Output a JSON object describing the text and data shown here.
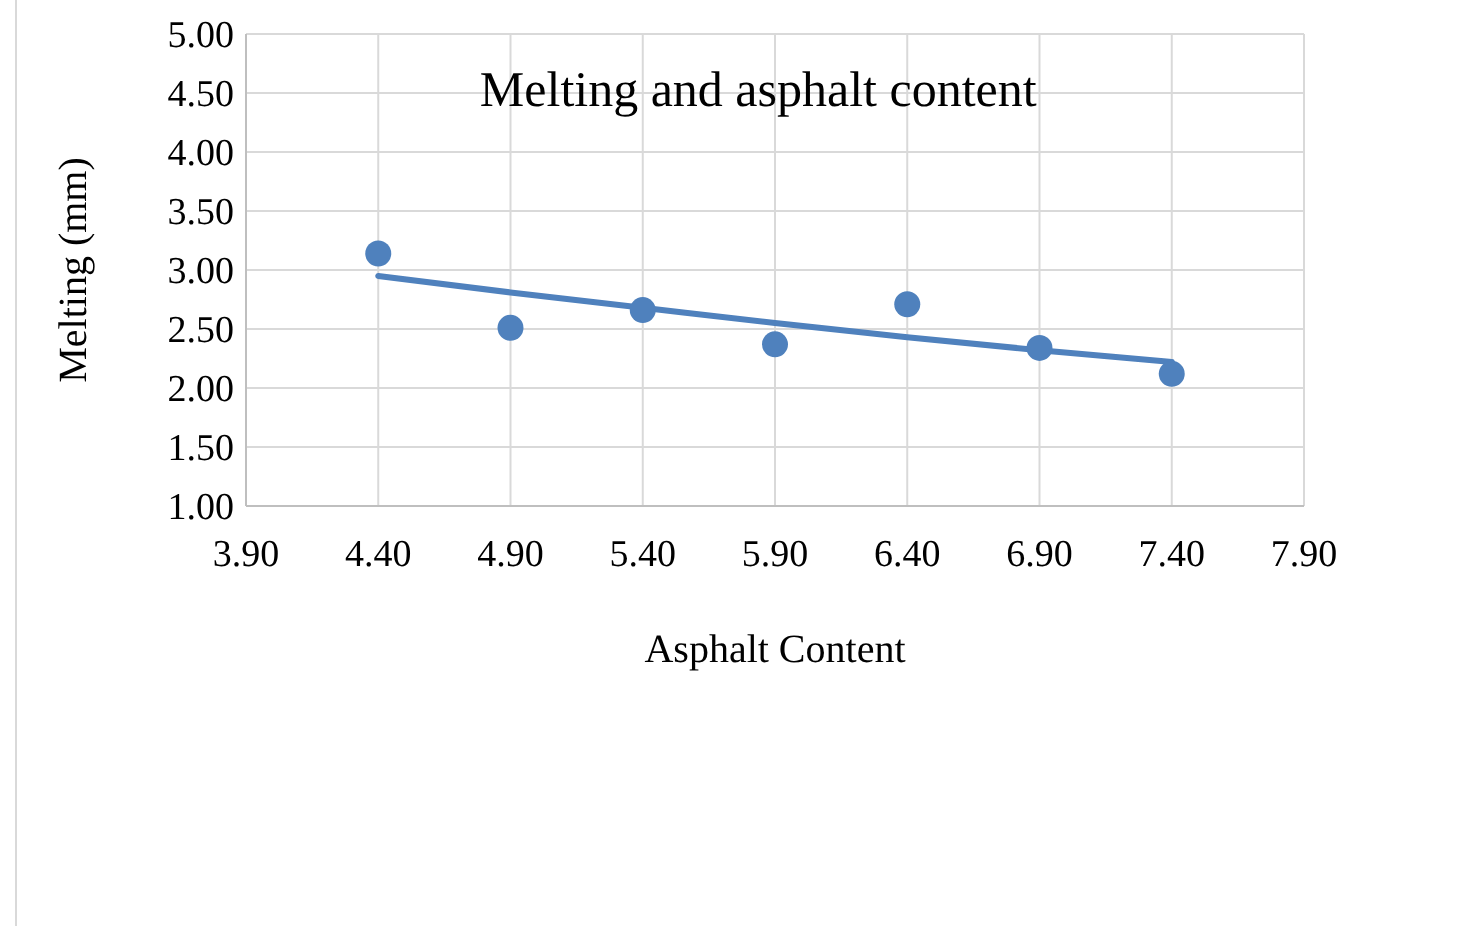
{
  "chart_data": {
    "type": "scatter",
    "title": "Melting and asphalt content",
    "xlabel": "Asphalt Content",
    "ylabel": "Melting (mm)",
    "x": [
      4.4,
      4.9,
      5.4,
      5.9,
      6.4,
      6.9,
      7.4
    ],
    "series": [
      {
        "color": "#4f81bd",
        "values": [
          3.14,
          2.51,
          2.66,
          2.37,
          2.71,
          2.34,
          2.12
        ],
        "marker": "circle"
      },
      {
        "type": "line",
        "color": "#4f81bd",
        "x": [
          4.4,
          4.9,
          5.4,
          5.9,
          6.4,
          6.9,
          7.4
        ],
        "values": [
          2.95,
          2.81,
          2.68,
          2.55,
          2.43,
          2.32,
          2.22
        ],
        "line_style": "solid"
      }
    ],
    "xlim": [
      3.9,
      7.9
    ],
    "xticks": [
      {
        "value": 3.9,
        "label": "3.90"
      },
      {
        "value": 4.4,
        "label": "4.40"
      },
      {
        "value": 4.9,
        "label": "4.90"
      },
      {
        "value": 5.4,
        "label": "5.40"
      },
      {
        "value": 5.9,
        "label": "5.90"
      },
      {
        "value": 6.4,
        "label": "6.40"
      },
      {
        "value": 6.9,
        "label": "6.90"
      },
      {
        "value": 7.4,
        "label": "7.40"
      },
      {
        "value": 7.9,
        "label": "7.90"
      }
    ],
    "ylim": [
      1,
      5
    ],
    "yticks": [
      {
        "value": 1,
        "label": "1.00"
      },
      {
        "value": 1.5,
        "label": "1.50"
      },
      {
        "value": 2,
        "label": "2.00"
      },
      {
        "value": 2.5,
        "label": "2.50"
      },
      {
        "value": 3,
        "label": "3.00"
      },
      {
        "value": 3.5,
        "label": "3.50"
      },
      {
        "value": 4,
        "label": "4.00"
      },
      {
        "value": 4.5,
        "label": "4.50"
      },
      {
        "value": 5,
        "label": "5.00"
      }
    ],
    "grid": true
  }
}
